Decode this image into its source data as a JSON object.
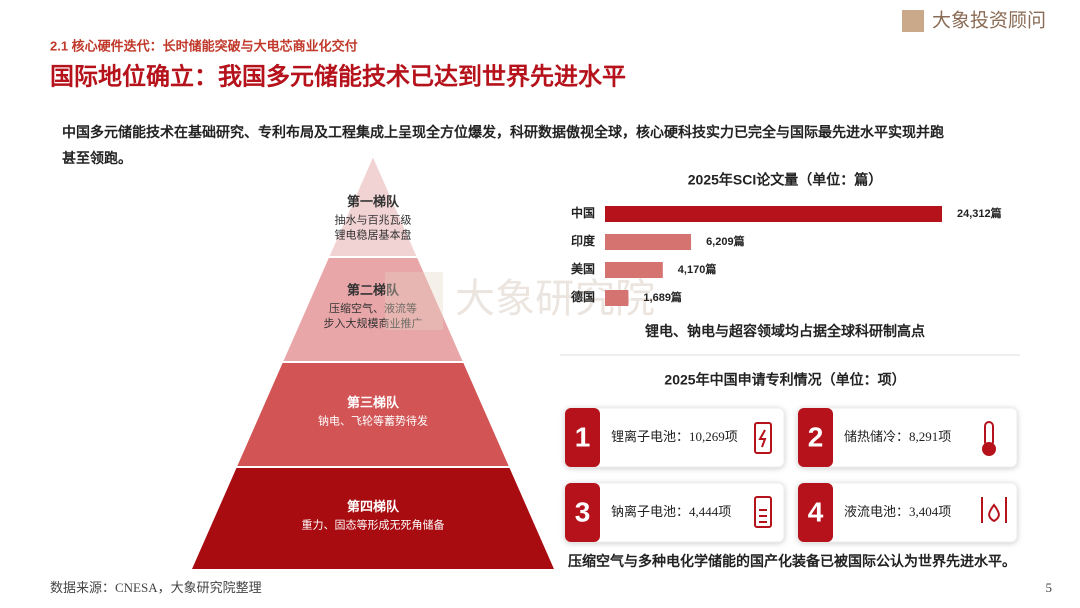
{
  "logo": "大象投资顾问",
  "header": {
    "section": "2.1 核心硬件迭代：长时储能突破与大电芯商业化交付",
    "title": "国际地位确立：我国多元储能技术已达到世界先进水平"
  },
  "intro": [
    "中国多元储能技术在基础研究、专利布局及工程集成上呈现全方位爆发，科研数据傲视全球，核心硬科技实力已完全与国际最先进水平实现并跑",
    "甚至领跑。"
  ],
  "pyramid": [
    {
      "name": "第一梯队",
      "desc": [
        "抽水与百兆瓦级",
        "锂电稳居基本盘"
      ]
    },
    {
      "name": "第二梯队",
      "desc": [
        "压缩空气、液流等",
        "步入大规模商业推广"
      ]
    },
    {
      "name": "第三梯队",
      "desc": [
        "钠电、飞轮等蓄势待发"
      ]
    },
    {
      "name": "第四梯队",
      "desc": [
        "重力、固态等形成无死角储备"
      ]
    }
  ],
  "chart_data": {
    "type": "bar",
    "title": "2025年SCI论文量（单位：篇）",
    "categories": [
      "中国",
      "印度",
      "美国",
      "德国"
    ],
    "values": [
      24312,
      6209,
      4170,
      1689
    ],
    "value_labels": [
      "24,312篇",
      "6,209篇",
      "4,170篇",
      "1,689篇"
    ],
    "colors": [
      "#b5121b",
      "#d4736f",
      "#d4736f",
      "#d4736f"
    ],
    "caption": "锂电、钠电与超容领域均占据全球科研制高点"
  },
  "patents": {
    "title": "2025年中国申请专利情况（单位：项）",
    "items": [
      {
        "index": "1",
        "text": "锂离子电池：10,269项"
      },
      {
        "index": "2",
        "text": "储热储冷：8,291项"
      },
      {
        "index": "3",
        "text": "钠离子电池：4,444项"
      },
      {
        "index": "4",
        "text": "液流电池：3,404项"
      }
    ],
    "note": "压缩空气与多种电化学储能的国产化装备已被国际公认为世界先进水平。"
  },
  "watermark": "大象研究院",
  "source": "数据来源：CNESA，大象研究院整理",
  "page": "5"
}
